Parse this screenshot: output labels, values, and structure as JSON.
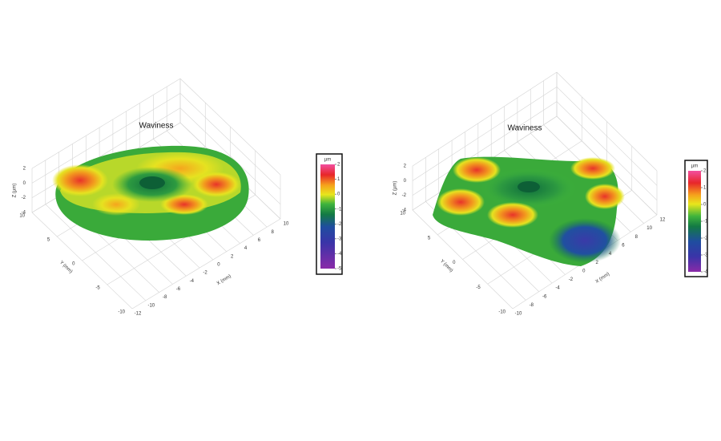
{
  "chart_data": [
    {
      "type": "surface3d",
      "title": "Waviness",
      "xlabel": "X (mm)",
      "ylabel": "Y (mm)",
      "zlabel": "Z (µm)",
      "colorbar_label": "µm",
      "xlim": [
        -12,
        10
      ],
      "xticks": [
        -12,
        -10,
        -8,
        -6,
        -4,
        -2,
        0,
        2,
        4,
        6,
        8,
        10
      ],
      "ylim": [
        -10,
        10
      ],
      "yticks": [
        -10,
        -5,
        0,
        5,
        10
      ],
      "zlim": [
        -4,
        2
      ],
      "zticks": [
        -4,
        -2,
        0,
        2
      ],
      "clim": [
        -5,
        2
      ],
      "cticks": [
        -5,
        -4,
        -3,
        -2,
        -1,
        0,
        1,
        2
      ]
    },
    {
      "type": "surface3d",
      "title": "Waviness",
      "xlabel": "X (mm)",
      "ylabel": "Y (mm)",
      "zlabel": "Z (µm)",
      "colorbar_label": "µm",
      "xlim": [
        -10,
        12
      ],
      "xticks": [
        -10,
        -8,
        -6,
        -4,
        -2,
        0,
        2,
        4,
        6,
        8,
        10,
        12
      ],
      "ylim": [
        -10,
        10
      ],
      "yticks": [
        -10,
        -5,
        0,
        5,
        10
      ],
      "zlim": [
        -4,
        2
      ],
      "zticks": [
        -4,
        -2,
        0,
        2
      ],
      "clim": [
        -4,
        2
      ],
      "cticks": [
        -4,
        -3,
        -2,
        -1,
        0,
        1,
        2
      ]
    }
  ]
}
